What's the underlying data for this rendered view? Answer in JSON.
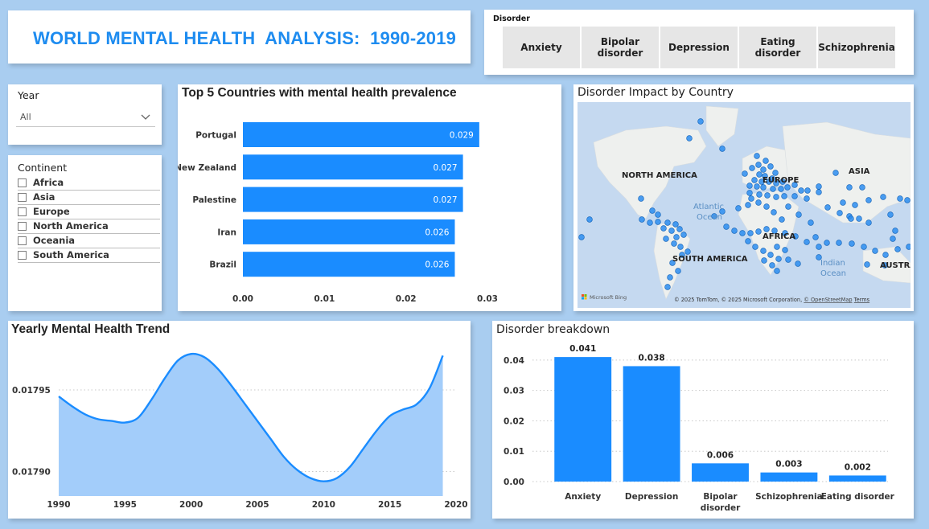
{
  "header": {
    "title": "WORLD MENTAL HEALTH  ANALYSIS:  1990-2019"
  },
  "disorder_slicer": {
    "label": "Disorder",
    "options": [
      {
        "line1": "Anxiety",
        "line2": ""
      },
      {
        "line1": "Bipolar",
        "line2": "disorder"
      },
      {
        "line1": "Depression",
        "line2": ""
      },
      {
        "line1": "Eating",
        "line2": "disorder"
      },
      {
        "line1": "Schizophrenia",
        "line2": ""
      }
    ]
  },
  "year_slicer": {
    "label": "Year",
    "value": "All"
  },
  "continent_slicer": {
    "label": "Continent",
    "items": [
      "Africa",
      "Asia",
      "Europe",
      "North America",
      "Oceania",
      "South America"
    ]
  },
  "map": {
    "title": "Disorder Impact by Country",
    "labels": {
      "north_america": "NORTH AMERICA",
      "europe": "EUROPE",
      "asia": "ASIA",
      "africa": "AFRICA",
      "south_america": "SOUTH AMERICA",
      "atlantic_1": "Atlantic",
      "atlantic_2": "Ocean",
      "indian_1": "Indian",
      "indian_2": "Ocean",
      "australia": "AUSTRA"
    },
    "brand": "Microsoft Bing",
    "attribution": "© 2025 TomTom, © 2025 Microsoft Corporation, ",
    "osm_link": "© OpenStreetMap",
    "terms": "Terms",
    "colors": {
      "land": "#eef0ee",
      "water": "#c5d9f0",
      "dot": "#2c8df0"
    }
  },
  "chart_data": [
    {
      "type": "bar",
      "orientation": "horizontal",
      "title": "Top 5 Countries with mental health prevalence",
      "categories": [
        "Portugal",
        "New Zealand",
        "Palestine",
        "Iran",
        "Brazil"
      ],
      "values": [
        0.029,
        0.027,
        0.027,
        0.026,
        0.026
      ],
      "xticks": [
        "0.00",
        "0.01",
        "0.02",
        "0.03"
      ],
      "xlim": [
        0,
        0.03
      ],
      "color": "#1a8cff"
    },
    {
      "type": "area",
      "title": "Yearly Mental Health Trend",
      "x": [
        1990,
        1991,
        1992,
        1993,
        1994,
        1995,
        1996,
        1997,
        1998,
        1999,
        2000,
        2001,
        2002,
        2003,
        2004,
        2005,
        2006,
        2007,
        2008,
        2009,
        2010,
        2011,
        2012,
        2013,
        2014,
        2015,
        2016,
        2017,
        2018,
        2019
      ],
      "values": [
        0.017946,
        0.01794,
        0.017935,
        0.017932,
        0.017931,
        0.01793,
        0.017933,
        0.017944,
        0.017957,
        0.017968,
        0.017972,
        0.01797,
        0.017963,
        0.017953,
        0.017942,
        0.017931,
        0.01792,
        0.017909,
        0.017901,
        0.017896,
        0.017894,
        0.017896,
        0.017903,
        0.017914,
        0.017925,
        0.017934,
        0.017938,
        0.017941,
        0.017951,
        0.017971
      ],
      "xticks": [
        "1990",
        "1995",
        "2000",
        "2005",
        "2010",
        "2015",
        "2020"
      ],
      "yticks": [
        "0.01790",
        "0.01795"
      ],
      "xlim": [
        1990,
        2020
      ],
      "ylim": [
        0.017885,
        0.01798
      ],
      "line_color": "#1a8cff",
      "fill_color": "#a3cdfa",
      "grid": true
    },
    {
      "type": "bar",
      "orientation": "vertical",
      "title": "Disorder breakdown",
      "categories": [
        {
          "line1": "Anxiety",
          "line2": ""
        },
        {
          "line1": "Depression",
          "line2": ""
        },
        {
          "line1": "Bipolar",
          "line2": "disorder"
        },
        {
          "line1": "Schizophrenia",
          "line2": ""
        },
        {
          "line1": "Eating disorder",
          "line2": ""
        }
      ],
      "values": [
        0.041,
        0.038,
        0.006,
        0.003,
        0.002
      ],
      "data_labels": [
        "0.041",
        "0.038",
        "0.006",
        "0.003",
        "0.002"
      ],
      "yticks": [
        "0.00",
        "0.01",
        "0.02",
        "0.03",
        "0.04"
      ],
      "ylim": [
        0,
        0.045
      ],
      "color": "#1a8cff",
      "grid": true
    }
  ]
}
